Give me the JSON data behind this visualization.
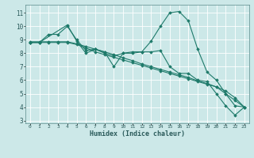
{
  "xlabel": "Humidex (Indice chaleur)",
  "bg_color": "#cce8e8",
  "line_color": "#1e7a6a",
  "grid_color": "#ffffff",
  "xlim": [
    -0.5,
    23.5
  ],
  "ylim": [
    2.8,
    11.6
  ],
  "yticks": [
    3,
    4,
    5,
    6,
    7,
    8,
    9,
    10,
    11
  ],
  "xticks": [
    0,
    1,
    2,
    3,
    4,
    5,
    6,
    7,
    8,
    9,
    10,
    11,
    12,
    13,
    14,
    15,
    16,
    17,
    18,
    19,
    20,
    21,
    22,
    23
  ],
  "series": [
    {
      "x": [
        0,
        1,
        2,
        3,
        4,
        5,
        6,
        7,
        8,
        9,
        10,
        11,
        12,
        13,
        14,
        15,
        16,
        17,
        18,
        19,
        20,
        21,
        22,
        23
      ],
      "y": [
        8.8,
        8.8,
        9.4,
        9.4,
        10.0,
        9.0,
        8.2,
        8.3,
        8.1,
        7.0,
        8.0,
        8.0,
        8.1,
        8.1,
        8.2,
        7.0,
        6.5,
        6.5,
        6.0,
        5.9,
        5.0,
        4.1,
        3.4,
        4.0
      ]
    },
    {
      "x": [
        0,
        1,
        4,
        5,
        6,
        7,
        8,
        9,
        10,
        11,
        12,
        13,
        14,
        15,
        16,
        17,
        18,
        19,
        20,
        21,
        22,
        23
      ],
      "y": [
        8.8,
        8.8,
        10.1,
        8.9,
        8.0,
        8.3,
        8.0,
        7.8,
        8.0,
        8.1,
        8.1,
        8.9,
        10.0,
        11.0,
        11.1,
        10.4,
        8.3,
        6.6,
        6.0,
        5.0,
        4.1,
        4.0
      ]
    },
    {
      "x": [
        0,
        1,
        2,
        3,
        4,
        5,
        6,
        7,
        8,
        9,
        10,
        11,
        12,
        13,
        14,
        15,
        16,
        17,
        18,
        19,
        20,
        21,
        22,
        23
      ],
      "y": [
        8.85,
        8.85,
        8.85,
        8.85,
        8.85,
        8.7,
        8.5,
        8.3,
        8.1,
        7.9,
        7.65,
        7.45,
        7.2,
        7.0,
        6.8,
        6.6,
        6.4,
        6.2,
        5.95,
        5.75,
        5.5,
        5.0,
        4.5,
        4.0
      ]
    },
    {
      "x": [
        0,
        1,
        2,
        3,
        4,
        5,
        6,
        7,
        8,
        9,
        10,
        11,
        12,
        13,
        14,
        15,
        16,
        17,
        18,
        19,
        20,
        21,
        22,
        23
      ],
      "y": [
        8.8,
        8.8,
        8.8,
        8.8,
        8.8,
        8.65,
        8.4,
        8.1,
        7.9,
        7.7,
        7.5,
        7.3,
        7.1,
        6.9,
        6.7,
        6.5,
        6.3,
        6.1,
        5.9,
        5.7,
        5.5,
        5.2,
        4.7,
        4.0
      ]
    }
  ]
}
